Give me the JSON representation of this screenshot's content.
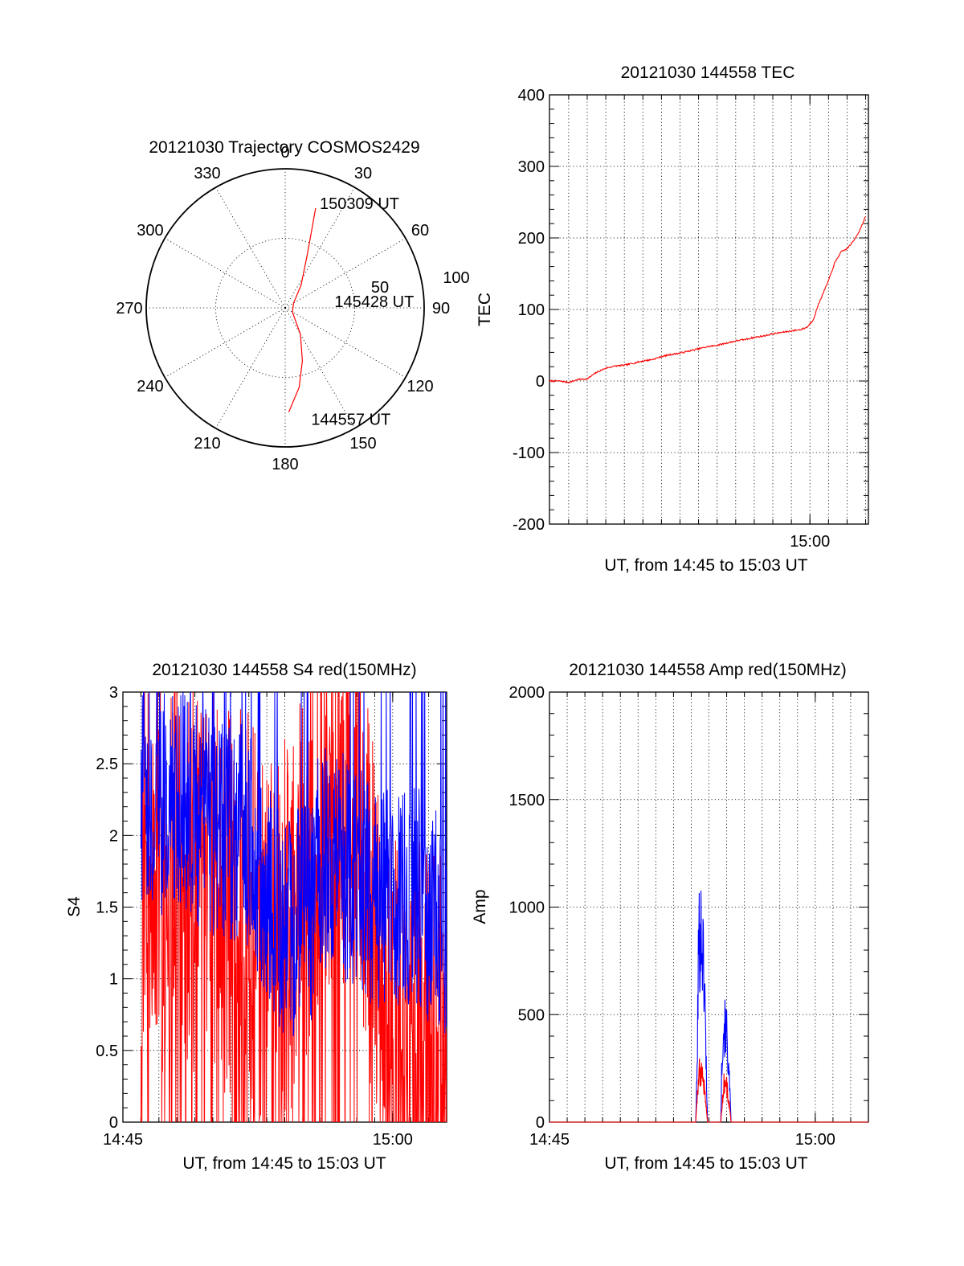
{
  "chart_data": [
    {
      "type": "polar",
      "title": "20121030 Trajectory COSMOS2429",
      "azimuth_labels": [
        "0",
        "30",
        "60",
        "90",
        "120",
        "150",
        "180",
        "210",
        "240",
        "270",
        "300",
        "330"
      ],
      "ring_labels": [
        "50",
        "100"
      ],
      "rlim": [
        0,
        100
      ],
      "series": [
        {
          "color": "#ff0000",
          "points": [
            {
              "az": 178,
              "zen": 75
            },
            {
              "az": 170,
              "zen": 58
            },
            {
              "az": 162,
              "zen": 40
            },
            {
              "az": 150,
              "zen": 22
            },
            {
              "az": 120,
              "zen": 6
            },
            {
              "az": 60,
              "zen": 7
            },
            {
              "az": 35,
              "zen": 20
            },
            {
              "az": 23,
              "zen": 40
            },
            {
              "az": 19,
              "zen": 58
            },
            {
              "az": 17,
              "zen": 75
            }
          ]
        }
      ],
      "annotations": [
        {
          "text": "150309 UT",
          "az": 19,
          "zen": 80
        },
        {
          "text": "145428 UT",
          "az": 82,
          "zen": 37
        },
        {
          "text": "144557 UT",
          "az": 166,
          "zen": 82
        }
      ]
    },
    {
      "type": "line",
      "title": "20121030 144558 TEC",
      "xlabel": "UT, from 14:45 to 15:03 UT",
      "ylabel": "TEC",
      "xlim": [
        "14:45:58",
        "15:03:09"
      ],
      "ylim": [
        -200,
        400
      ],
      "yticks": [
        "-200",
        "-100",
        "0",
        "100",
        "200",
        "300",
        "400"
      ],
      "xticks": [
        "15:00"
      ],
      "grid": true,
      "series": [
        {
          "color": "#ff0000",
          "x": [
            "14:45:58",
            "14:46:30",
            "14:47:00",
            "14:47:30",
            "14:48:00",
            "14:48:30",
            "14:49:00",
            "14:49:30",
            "14:50:00",
            "14:50:30",
            "14:51:00",
            "14:51:30",
            "14:52:00",
            "14:52:30",
            "14:53:00",
            "14:53:30",
            "14:54:00",
            "14:54:30",
            "14:55:00",
            "14:55:30",
            "14:56:00",
            "14:56:30",
            "14:57:00",
            "14:57:30",
            "14:58:00",
            "14:58:30",
            "14:59:00",
            "14:59:30",
            "14:59:50",
            "15:00:10",
            "15:00:30",
            "15:01:00",
            "15:01:20",
            "15:01:40",
            "15:02:00",
            "15:02:20",
            "15:02:40",
            "15:03:00"
          ],
          "values": [
            0,
            0,
            -2,
            2,
            3,
            12,
            18,
            21,
            22,
            25,
            28,
            30,
            34,
            37,
            39,
            42,
            45,
            48,
            50,
            53,
            56,
            58,
            61,
            63,
            66,
            68,
            70,
            72,
            75,
            85,
            110,
            140,
            165,
            180,
            185,
            195,
            210,
            230
          ]
        }
      ]
    },
    {
      "type": "line",
      "title": "20121030 144558 S4 red(150MHz)",
      "xlabel": "UT, from 14:45 to 15:03 UT",
      "ylabel": "S4",
      "xlim": [
        "14:45:00",
        "15:03:00"
      ],
      "ylim": [
        0,
        3
      ],
      "yticks": [
        "0",
        "0.5",
        "1",
        "1.5",
        "2",
        "2.5",
        "3"
      ],
      "xticks": [
        "14:45",
        "15:00"
      ],
      "grid": true,
      "series": [
        {
          "color": "#ff0000",
          "x": [
            "14:46:00",
            "14:48:00",
            "14:50:00",
            "14:52:00",
            "14:53:30",
            "14:54:00",
            "14:55:00",
            "14:55:30",
            "14:56:00",
            "14:57:00",
            "14:58:00",
            "14:59:00",
            "15:00:00",
            "15:01:00",
            "15:02:00",
            "15:03:00"
          ],
          "values": [
            1.8,
            1.7,
            1.6,
            1.5,
            1.2,
            1.4,
            1.6,
            1.9,
            2.3,
            2.4,
            2.1,
            1.4,
            0.6,
            0.55,
            0.6,
            0.5
          ]
        },
        {
          "color": "#0000ff",
          "x": [
            "14:46:00",
            "14:48:00",
            "14:50:00",
            "14:52:00",
            "14:53:30",
            "14:54:00",
            "14:55:00",
            "14:55:30",
            "14:56:00",
            "14:57:00",
            "14:58:00",
            "14:59:00",
            "15:00:00",
            "15:01:00",
            "15:02:00",
            "15:03:00"
          ],
          "values": [
            2.3,
            2.2,
            2.1,
            2.0,
            1.5,
            1.3,
            1.5,
            1.4,
            1.9,
            1.8,
            1.7,
            1.6,
            1.6,
            1.6,
            1.5,
            1.4
          ]
        }
      ]
    },
    {
      "type": "line",
      "title": "20121030 144558 Amp red(150MHz)",
      "xlabel": "UT, from 14:45 to 15:03 UT",
      "ylabel": "Amp",
      "xlim": [
        "14:45:00",
        "15:03:00"
      ],
      "ylim": [
        0,
        2000
      ],
      "yticks": [
        "0",
        "500",
        "1000",
        "1500",
        "2000"
      ],
      "xticks": [
        "14:45",
        "15:00"
      ],
      "grid": true,
      "series": [
        {
          "color": "#0000ff",
          "x": [
            "14:45:00",
            "14:53:15",
            "14:53:20",
            "14:53:25",
            "14:53:35",
            "14:53:45",
            "14:53:55",
            "14:54:40",
            "14:54:45",
            "14:54:50",
            "14:55:00",
            "14:55:10",
            "14:55:15",
            "15:03:00"
          ],
          "values": [
            0,
            0,
            300,
            1050,
            1120,
            800,
            0,
            0,
            450,
            560,
            520,
            200,
            0,
            0
          ]
        },
        {
          "color": "#ff0000",
          "x": [
            "14:45:00",
            "14:53:15",
            "14:53:20",
            "14:53:25",
            "14:53:35",
            "14:53:45",
            "14:53:55",
            "14:54:40",
            "14:54:45",
            "14:54:50",
            "14:55:00",
            "14:55:10",
            "14:55:15",
            "15:03:00"
          ],
          "values": [
            0,
            0,
            120,
            280,
            300,
            200,
            0,
            0,
            100,
            230,
            210,
            80,
            0,
            0
          ]
        }
      ]
    }
  ]
}
